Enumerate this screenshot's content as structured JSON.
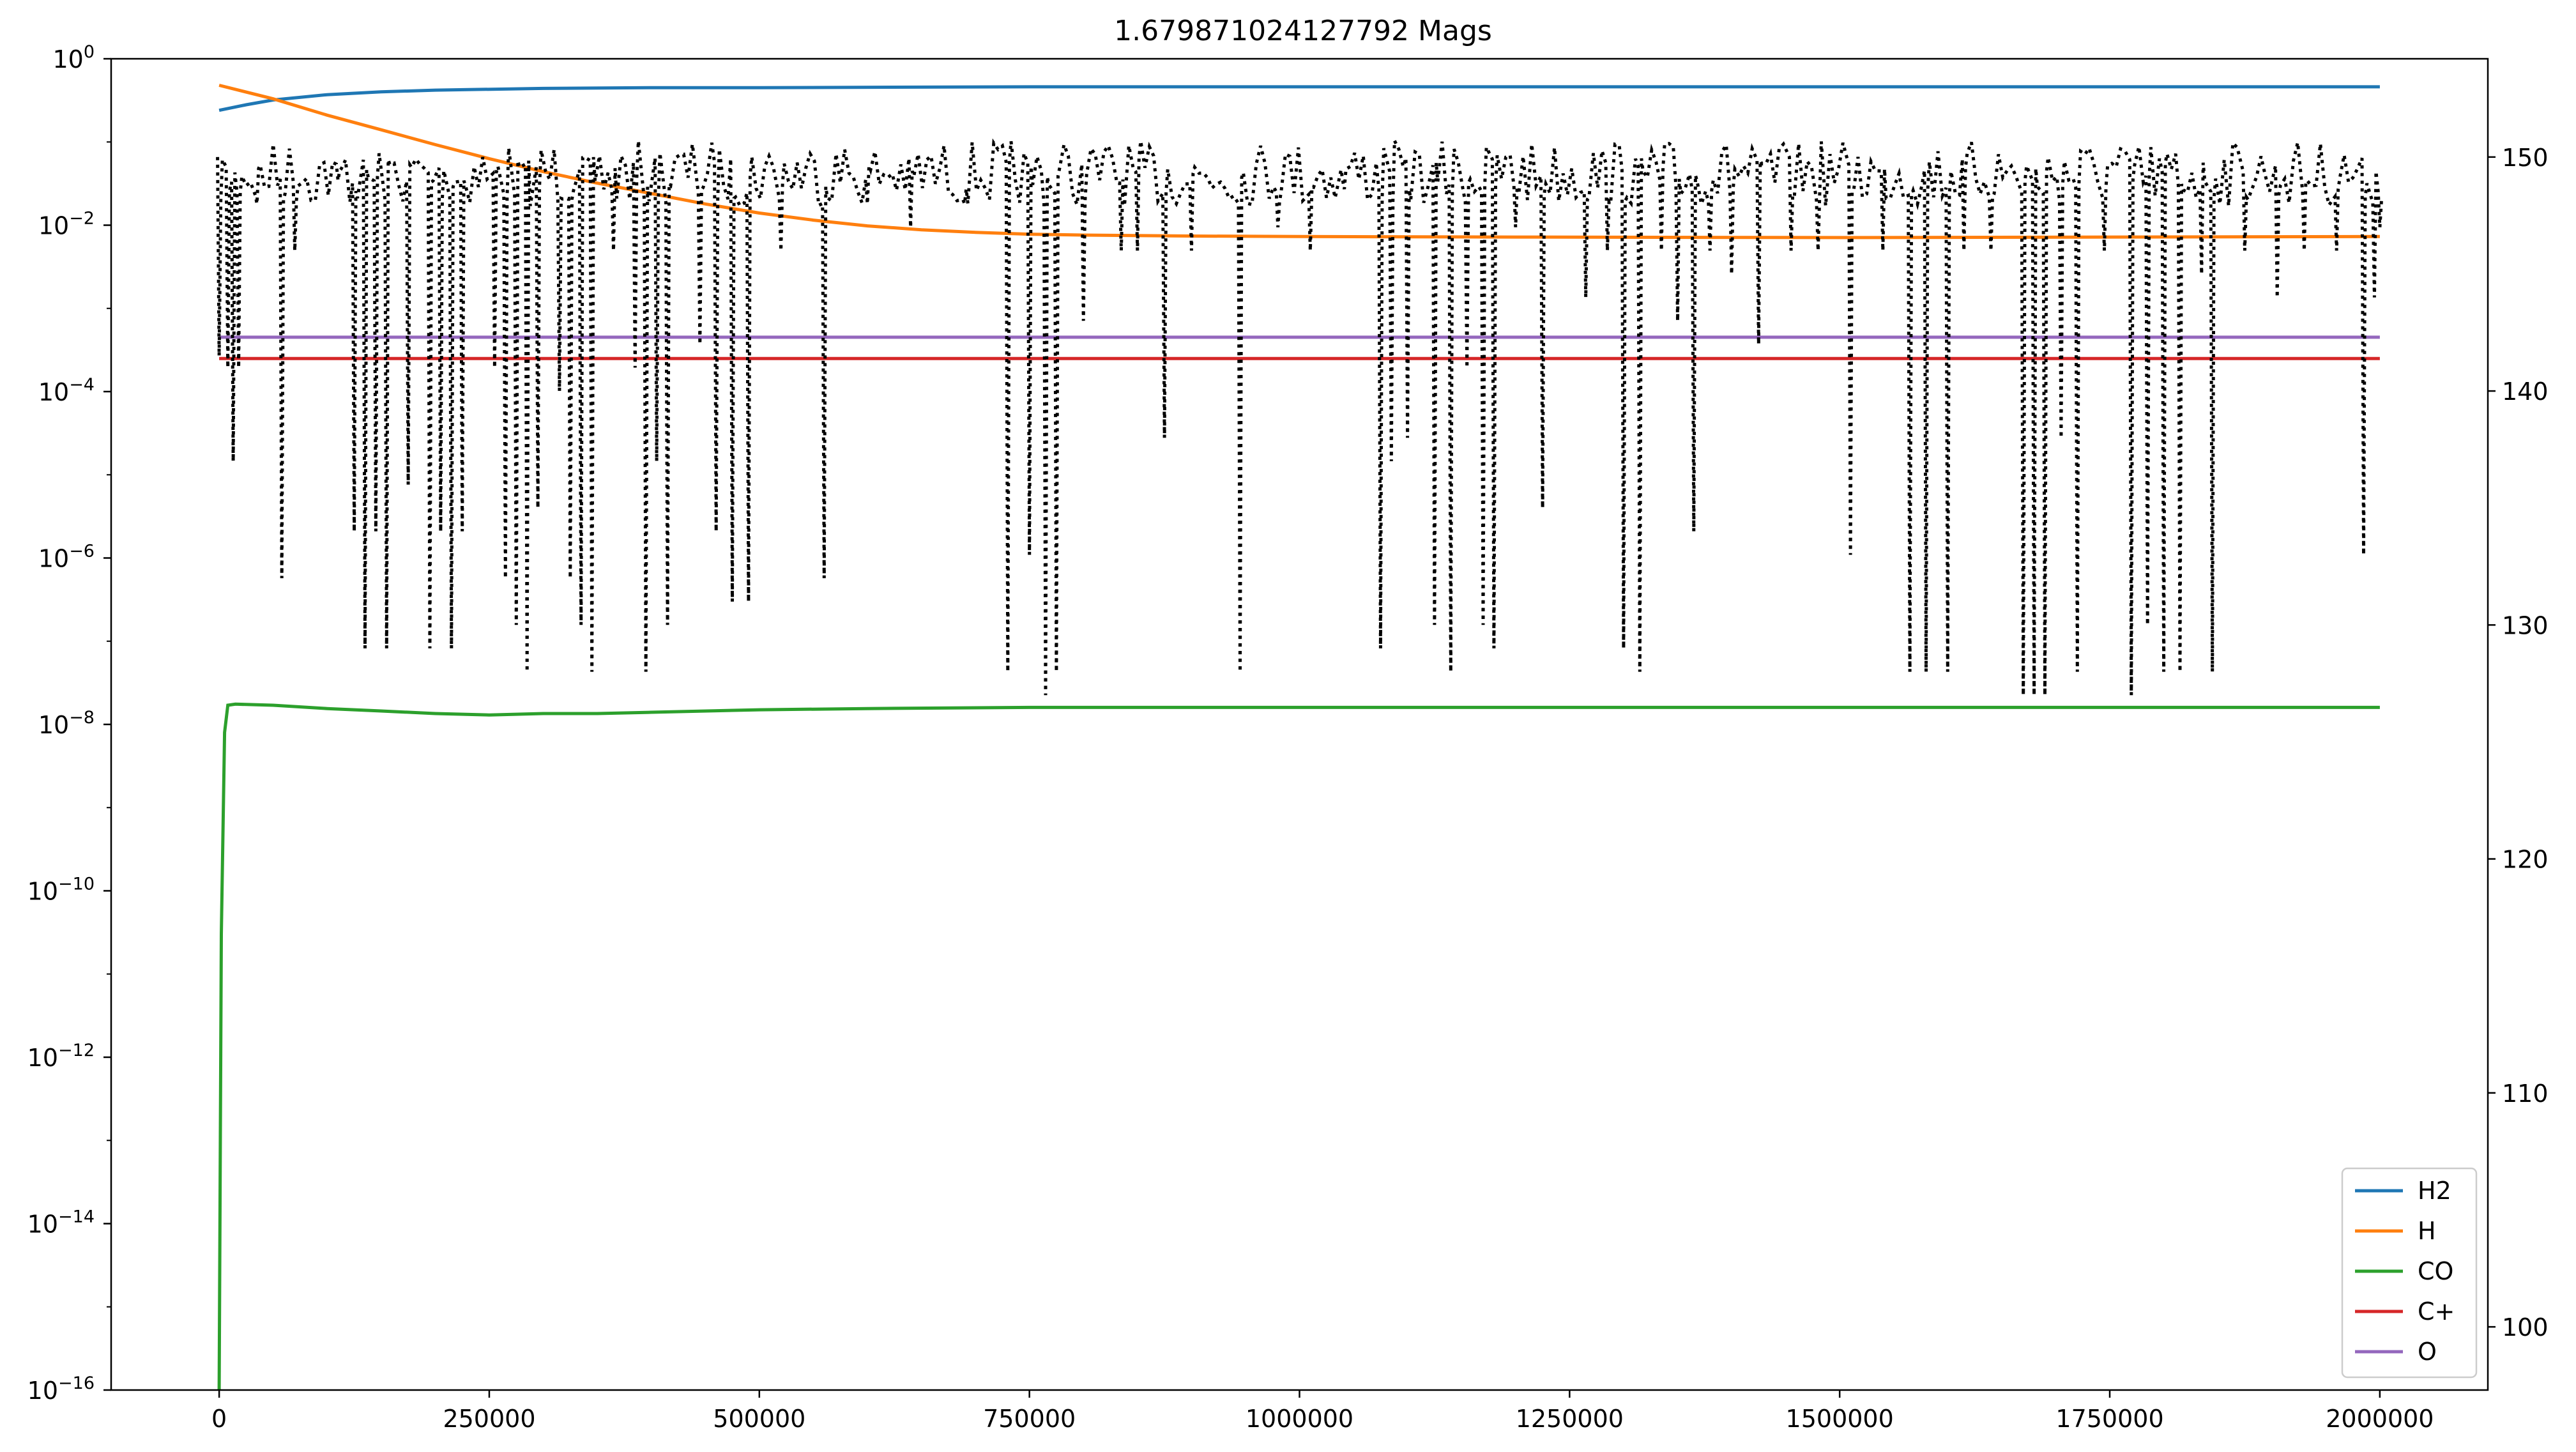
{
  "chart_data": {
    "type": "line",
    "title": "1.679871024127792 Mags",
    "xlabel": "",
    "ylabel": "",
    "x_range": [
      -100000,
      2100000
    ],
    "x_ticks": [
      0,
      250000,
      500000,
      750000,
      1000000,
      1250000,
      1500000,
      1750000,
      2000000
    ],
    "x_tick_labels": [
      "0",
      "250000",
      "500000",
      "750000",
      "1000000",
      "1250000",
      "1500000",
      "1750000",
      "2000000"
    ],
    "left_axis": {
      "scale": "log",
      "ylim": [
        1e-16,
        1
      ],
      "ticks": [
        {
          "value": 1,
          "base": "10",
          "exp": "0"
        },
        {
          "value": 0.01,
          "base": "10",
          "exp": "−2"
        },
        {
          "value": 0.0001,
          "base": "10",
          "exp": "−4"
        },
        {
          "value": 1e-06,
          "base": "10",
          "exp": "−6"
        },
        {
          "value": 1e-08,
          "base": "10",
          "exp": "−8"
        },
        {
          "value": 1e-10,
          "base": "10",
          "exp": "−10"
        },
        {
          "value": 1e-12,
          "base": "10",
          "exp": "−12"
        },
        {
          "value": 1e-14,
          "base": "10",
          "exp": "−14"
        },
        {
          "value": 1e-16,
          "base": "10",
          "exp": "−16"
        }
      ]
    },
    "right_axis": {
      "scale": "linear",
      "ylim": [
        97.3,
        154.2
      ],
      "ticks": [
        100,
        110,
        120,
        130,
        140,
        150
      ],
      "tick_labels": [
        "100",
        "110",
        "120",
        "130",
        "140",
        "150"
      ]
    },
    "legend_position": "bottom-right",
    "series": [
      {
        "name": "H2",
        "color": "#1f77b4",
        "axis": "left",
        "x": [
          0,
          25000,
          50000,
          100000,
          150000,
          200000,
          300000,
          400000,
          500000,
          750000,
          1000000,
          1500000,
          2000000
        ],
        "y": [
          0.24,
          0.28,
          0.32,
          0.37,
          0.4,
          0.42,
          0.44,
          0.45,
          0.45,
          0.46,
          0.46,
          0.46,
          0.46
        ]
      },
      {
        "name": "H",
        "color": "#ff7f0e",
        "axis": "left",
        "x": [
          0,
          50000,
          100000,
          150000,
          200000,
          250000,
          300000,
          350000,
          400000,
          450000,
          500000,
          550000,
          600000,
          650000,
          700000,
          750000,
          800000,
          900000,
          1000000,
          1200000,
          1500000,
          1750000,
          2000000
        ],
        "y": [
          0.48,
          0.33,
          0.21,
          0.14,
          0.093,
          0.063,
          0.044,
          0.032,
          0.024,
          0.018,
          0.014,
          0.0115,
          0.0098,
          0.0088,
          0.0082,
          0.0078,
          0.0076,
          0.0074,
          0.0073,
          0.0072,
          0.0071,
          0.0072,
          0.0073
        ]
      },
      {
        "name": "CO",
        "color": "#2ca02c",
        "axis": "left",
        "x": [
          0,
          2000,
          5000,
          8000,
          15000,
          50000,
          100000,
          150000,
          200000,
          250000,
          300000,
          350000,
          400000,
          500000,
          600000,
          750000,
          1000000,
          1250000,
          1500000,
          1750000,
          2000000
        ],
        "y": [
          1e-16,
          3e-11,
          8e-09,
          1.7e-08,
          1.75e-08,
          1.7e-08,
          1.55e-08,
          1.45e-08,
          1.35e-08,
          1.3e-08,
          1.35e-08,
          1.35e-08,
          1.4e-08,
          1.5e-08,
          1.55e-08,
          1.6e-08,
          1.6e-08,
          1.6e-08,
          1.6e-08,
          1.6e-08,
          1.6e-08
        ]
      },
      {
        "name": "C+",
        "color": "#d62728",
        "axis": "left",
        "x": [
          0,
          2000000
        ],
        "y": [
          0.00025,
          0.00025
        ]
      },
      {
        "name": "O",
        "color": "#9467bd",
        "axis": "left",
        "x": [
          0,
          2000000
        ],
        "y": [
          0.00045,
          0.00045
        ]
      },
      {
        "name": "",
        "color": "#000000",
        "axis": "right",
        "style": "dotted",
        "baseline": 151,
        "dips": [
          [
            0,
            141.5
          ],
          [
            8000,
            141
          ],
          [
            13000,
            137
          ],
          [
            18000,
            141
          ],
          [
            35000,
            148
          ],
          [
            58000,
            132
          ],
          [
            70000,
            146
          ],
          [
            110000,
            149
          ],
          [
            125000,
            134
          ],
          [
            135000,
            129
          ],
          [
            145000,
            134
          ],
          [
            155000,
            129
          ],
          [
            175000,
            136
          ],
          [
            195000,
            129
          ],
          [
            205000,
            134
          ],
          [
            215000,
            129
          ],
          [
            225000,
            134
          ],
          [
            255000,
            141
          ],
          [
            265000,
            132
          ],
          [
            275000,
            130
          ],
          [
            285000,
            128
          ],
          [
            295000,
            135
          ],
          [
            315000,
            140
          ],
          [
            325000,
            132
          ],
          [
            335000,
            130
          ],
          [
            345000,
            128
          ],
          [
            365000,
            146
          ],
          [
            385000,
            141
          ],
          [
            395000,
            128
          ],
          [
            405000,
            137
          ],
          [
            415000,
            130
          ],
          [
            445000,
            142
          ],
          [
            460000,
            134
          ],
          [
            475000,
            131
          ],
          [
            490000,
            131
          ],
          [
            520000,
            146
          ],
          [
            560000,
            132
          ],
          [
            600000,
            148
          ],
          [
            640000,
            147
          ],
          [
            690000,
            148
          ],
          [
            730000,
            128
          ],
          [
            750000,
            133
          ],
          [
            765000,
            127
          ],
          [
            775000,
            128
          ],
          [
            800000,
            143
          ],
          [
            835000,
            146
          ],
          [
            850000,
            146
          ],
          [
            875000,
            138
          ],
          [
            900000,
            146
          ],
          [
            945000,
            128
          ],
          [
            980000,
            147
          ],
          [
            1010000,
            146
          ],
          [
            1040000,
            149
          ],
          [
            1075000,
            129
          ],
          [
            1085000,
            137
          ],
          [
            1100000,
            138
          ],
          [
            1125000,
            130
          ],
          [
            1140000,
            128
          ],
          [
            1155000,
            141
          ],
          [
            1170000,
            130
          ],
          [
            1180000,
            129
          ],
          [
            1200000,
            147
          ],
          [
            1225000,
            135
          ],
          [
            1265000,
            144
          ],
          [
            1285000,
            146
          ],
          [
            1300000,
            129
          ],
          [
            1315000,
            128
          ],
          [
            1335000,
            146
          ],
          [
            1350000,
            143
          ],
          [
            1365000,
            134
          ],
          [
            1380000,
            146
          ],
          [
            1400000,
            145
          ],
          [
            1425000,
            142
          ],
          [
            1455000,
            146
          ],
          [
            1480000,
            146
          ],
          [
            1510000,
            133
          ],
          [
            1540000,
            146
          ],
          [
            1565000,
            128
          ],
          [
            1580000,
            128
          ],
          [
            1600000,
            128
          ],
          [
            1615000,
            146
          ],
          [
            1640000,
            146
          ],
          [
            1670000,
            127
          ],
          [
            1680000,
            127
          ],
          [
            1690000,
            127
          ],
          [
            1705000,
            138
          ],
          [
            1720000,
            128
          ],
          [
            1745000,
            146
          ],
          [
            1770000,
            127
          ],
          [
            1785000,
            130
          ],
          [
            1800000,
            128
          ],
          [
            1815000,
            128
          ],
          [
            1835000,
            145
          ],
          [
            1845000,
            128
          ],
          [
            1875000,
            146
          ],
          [
            1905000,
            144
          ],
          [
            1930000,
            146
          ],
          [
            1960000,
            146
          ],
          [
            1985000,
            133
          ],
          [
            1995000,
            144
          ],
          [
            2000000,
            147
          ]
        ]
      }
    ]
  }
}
